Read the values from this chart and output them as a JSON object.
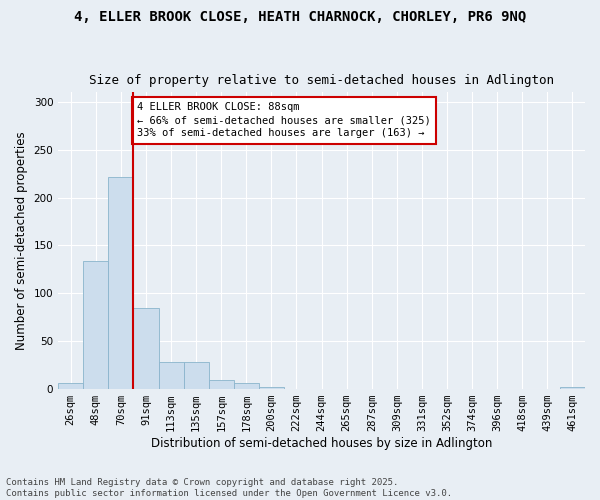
{
  "title_line1": "4, ELLER BROOK CLOSE, HEATH CHARNOCK, CHORLEY, PR6 9NQ",
  "title_line2": "Size of property relative to semi-detached houses in Adlington",
  "xlabel": "Distribution of semi-detached houses by size in Adlington",
  "ylabel": "Number of semi-detached properties",
  "bins": [
    "26sqm",
    "48sqm",
    "70sqm",
    "91sqm",
    "113sqm",
    "135sqm",
    "157sqm",
    "178sqm",
    "200sqm",
    "222sqm",
    "244sqm",
    "265sqm",
    "287sqm",
    "309sqm",
    "331sqm",
    "352sqm",
    "374sqm",
    "396sqm",
    "418sqm",
    "439sqm",
    "461sqm"
  ],
  "values": [
    6,
    134,
    222,
    85,
    28,
    28,
    10,
    6,
    2,
    0,
    0,
    0,
    0,
    0,
    0,
    0,
    0,
    0,
    0,
    0,
    2
  ],
  "bar_color": "#ccdded",
  "bar_edge_color": "#8ab4cc",
  "vline_color": "#cc0000",
  "vline_pos": 2.5,
  "annotation_text": "4 ELLER BROOK CLOSE: 88sqm\n← 66% of semi-detached houses are smaller (325)\n33% of semi-detached houses are larger (163) →",
  "annotation_box_color": "#ffffff",
  "annotation_box_edge": "#cc0000",
  "ylim": [
    0,
    310
  ],
  "yticks": [
    0,
    50,
    100,
    150,
    200,
    250,
    300
  ],
  "background_color": "#e8eef4",
  "plot_background": "#e8eef4",
  "footer": "Contains HM Land Registry data © Crown copyright and database right 2025.\nContains public sector information licensed under the Open Government Licence v3.0.",
  "title_fontsize": 10,
  "subtitle_fontsize": 9,
  "axis_label_fontsize": 8.5,
  "tick_fontsize": 7.5,
  "annotation_fontsize": 7.5,
  "footer_fontsize": 6.5
}
